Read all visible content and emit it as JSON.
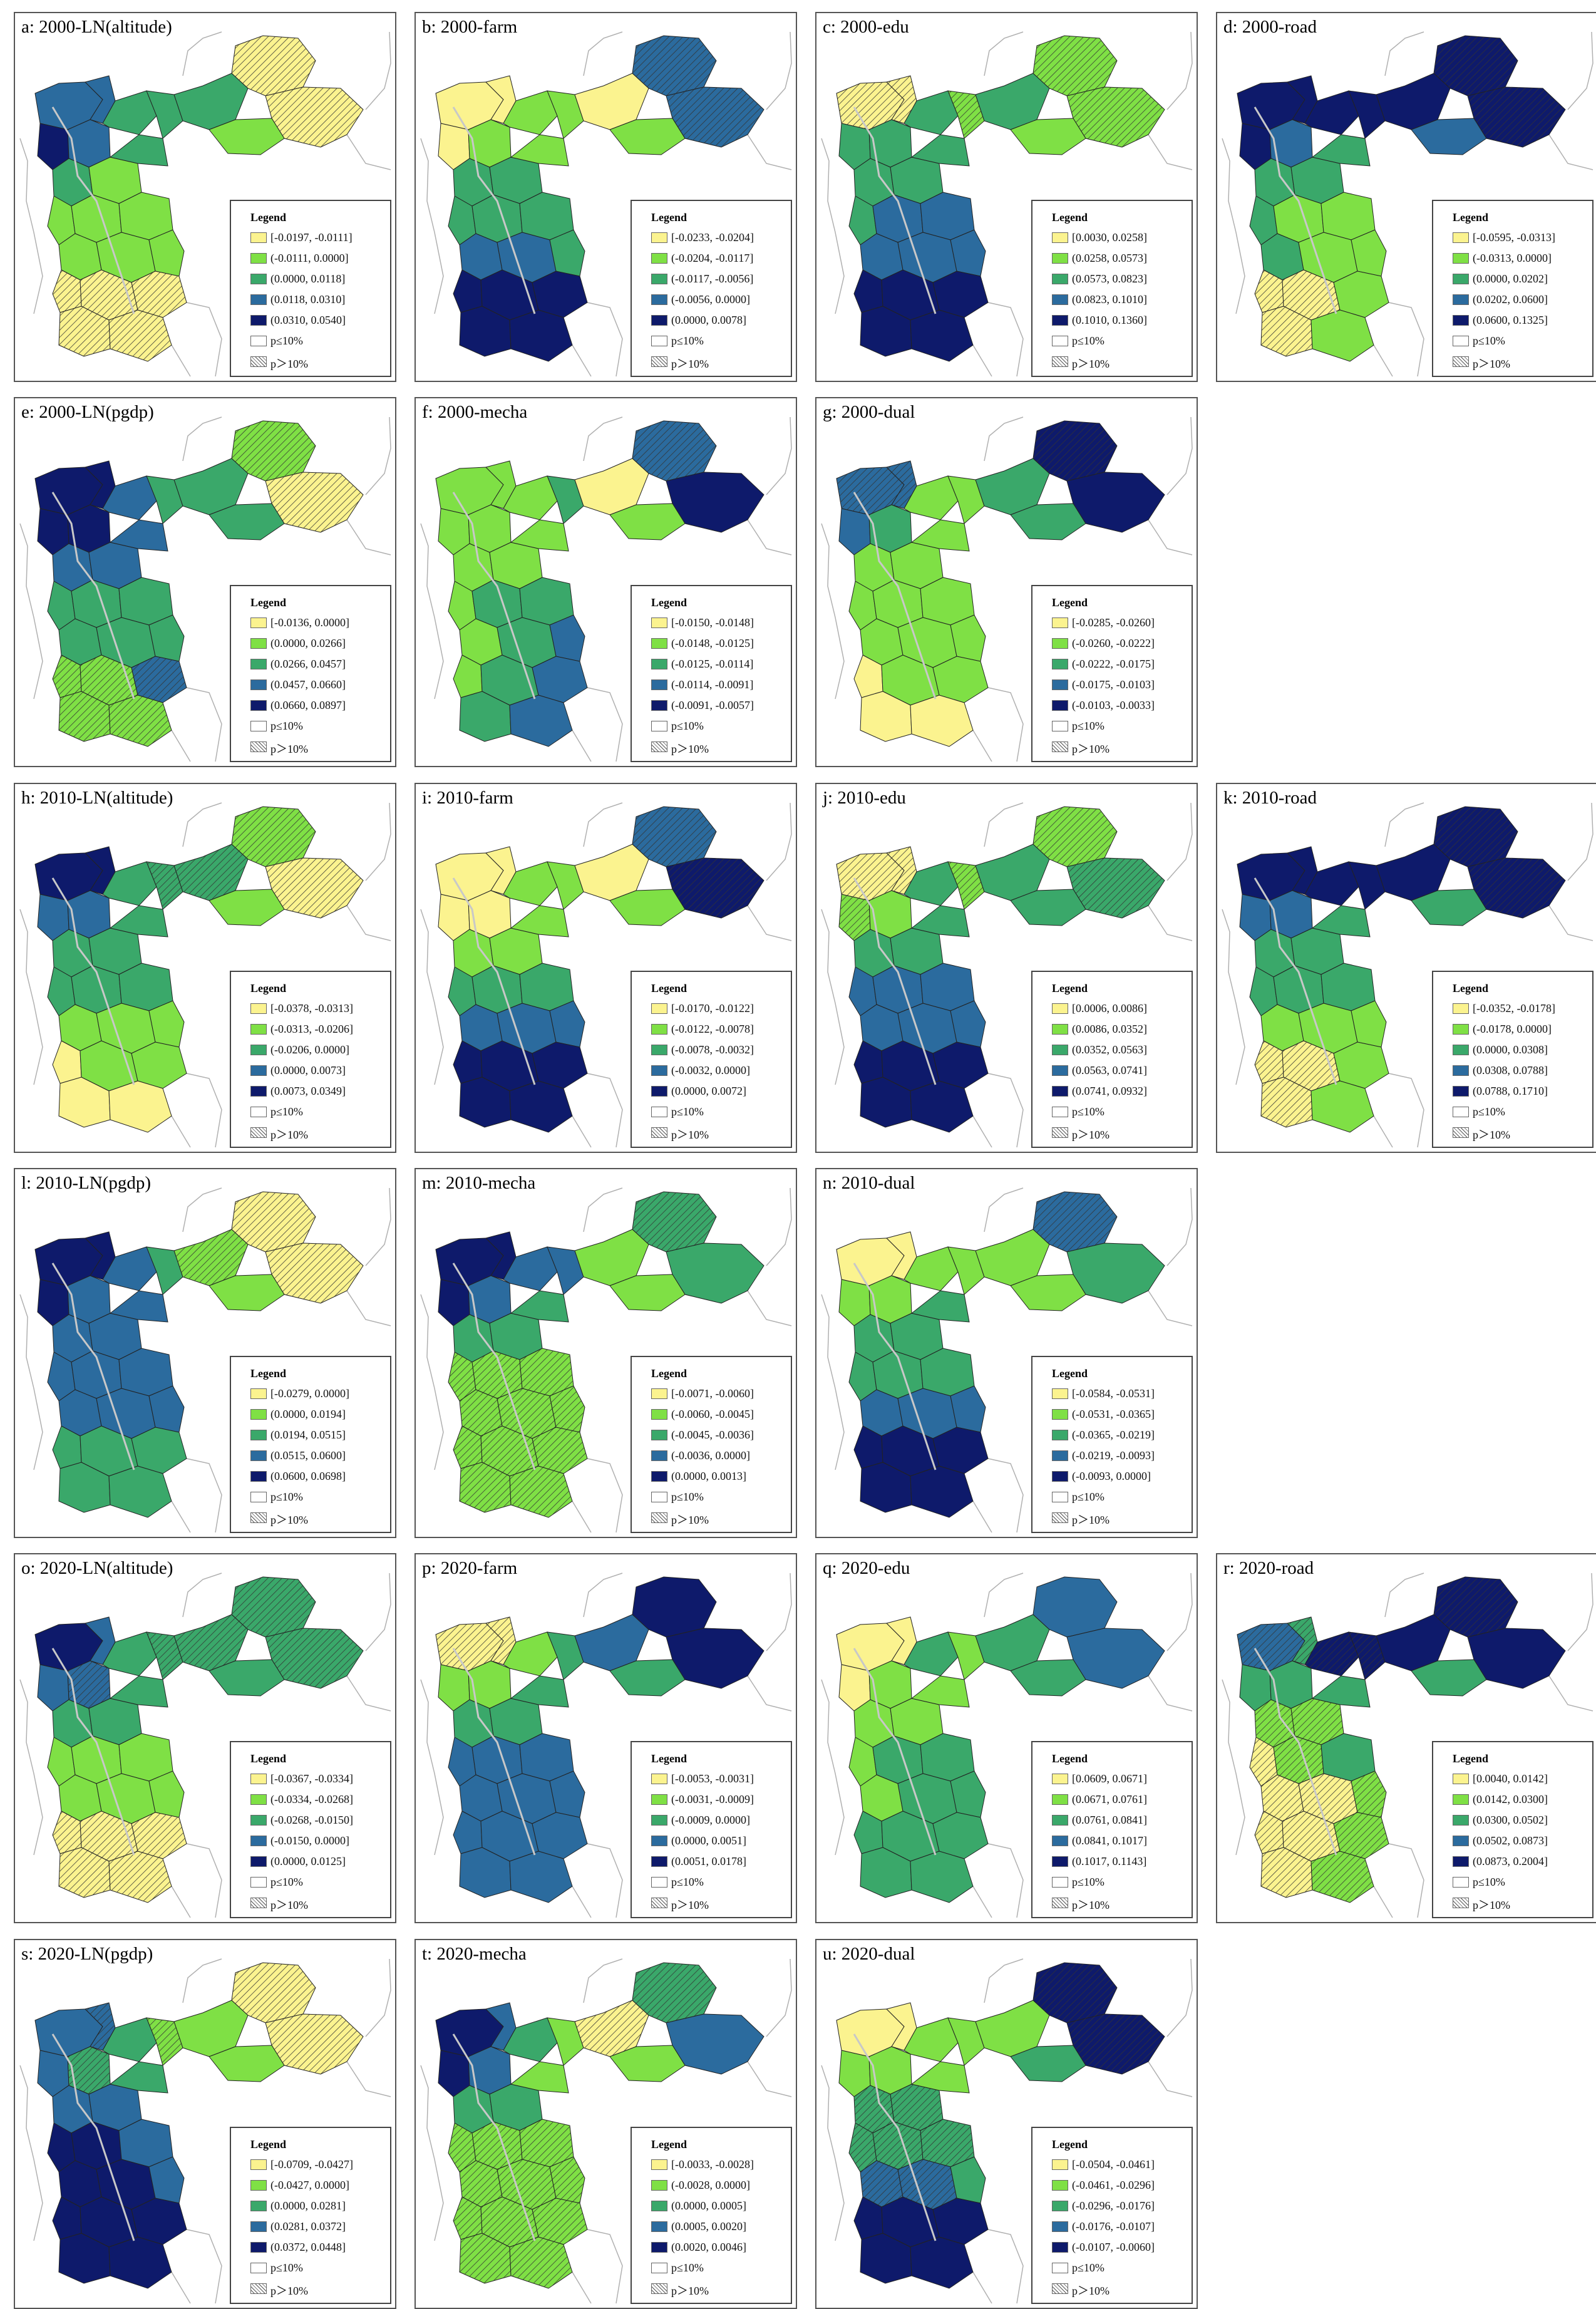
{
  "palette": [
    "#fbf38f",
    "#7fe045",
    "#3aa86a",
    "#2b6b9e",
    "#0e1a6b"
  ],
  "hatch_legend_label": "p＞10%",
  "nohatch_legend_label": "p≤10%",
  "legend_title": "Legend",
  "panels": [
    {
      "title": "a: 2000-LN(altitude)",
      "legend": [
        "[-0.0197, -0.0111]",
        "(-0.0111, 0.0000]",
        "(0.0000, 0.0118]",
        "(0.0118, 0.0310]",
        "(0.0310, 0.0540]"
      ],
      "layer": 0
    },
    {
      "title": "b: 2000-farm",
      "legend": [
        "[-0.0233, -0.0204]",
        "(-0.0204, -0.0117]",
        "(-0.0117, -0.0056]",
        "(-0.0056, 0.0000]",
        "(0.0000, 0.0078]"
      ],
      "layer": 1
    },
    {
      "title": "c: 2000-edu",
      "legend": [
        "[0.0030, 0.0258]",
        "(0.0258, 0.0573]",
        "(0.0573, 0.0823]",
        "(0.0823, 0.1010]",
        "(0.1010, 0.1360]"
      ],
      "layer": 2
    },
    {
      "title": "d: 2000-road",
      "legend": [
        "[-0.0595, -0.0313]",
        "(-0.0313, 0.0000]",
        "(0.0000, 0.0202]",
        "(0.0202, 0.0600]",
        "(0.0600, 0.1325]"
      ],
      "layer": 3
    },
    {
      "title": "e: 2000-LN(pgdp)",
      "legend": [
        "[-0.0136, 0.0000]",
        "(0.0000, 0.0266]",
        "(0.0266, 0.0457]",
        "(0.0457, 0.0660]",
        "(0.0660, 0.0897]"
      ],
      "layer": 4
    },
    {
      "title": "f: 2000-mecha",
      "legend": [
        "[-0.0150, -0.0148]",
        "(-0.0148, -0.0125]",
        "(-0.0125, -0.0114]",
        "(-0.0114, -0.0091]",
        "(-0.0091, -0.0057]"
      ],
      "layer": 5
    },
    {
      "title": "g: 2000-dual",
      "legend": [
        "[-0.0285, -0.0260]",
        "(-0.0260, -0.0222]",
        "(-0.0222, -0.0175]",
        "(-0.0175, -0.0103]",
        "(-0.0103, -0.0033]"
      ],
      "layer": 6
    },
    {
      "title": "h: 2010-LN(altitude)",
      "legend": [
        "[-0.0378, -0.0313]",
        "(-0.0313, -0.0206]",
        "(-0.0206, 0.0000]",
        "(0.0000, 0.0073]",
        "(0.0073, 0.0349]"
      ],
      "layer": 0
    },
    {
      "title": "i: 2010-farm",
      "legend": [
        "[-0.0170, -0.0122]",
        "(-0.0122, -0.0078]",
        "(-0.0078, -0.0032]",
        "(-0.0032, 0.0000]",
        "(0.0000, 0.0072]"
      ],
      "layer": 1
    },
    {
      "title": "j: 2010-edu",
      "legend": [
        "[0.0006, 0.0086]",
        "(0.0086, 0.0352]",
        "(0.0352, 0.0563]",
        "(0.0563, 0.0741]",
        "(0.0741, 0.0932]"
      ],
      "layer": 2
    },
    {
      "title": "k: 2010-road",
      "legend": [
        "[-0.0352, -0.0178]",
        "(-0.0178, 0.0000]",
        "(0.0000, 0.0308]",
        "(0.0308, 0.0788]",
        "(0.0788, 0.1710]"
      ],
      "layer": 3
    },
    {
      "title": "l: 2010-LN(pgdp)",
      "legend": [
        "[-0.0279, 0.0000]",
        "(0.0000, 0.0194]",
        "(0.0194, 0.0515]",
        "(0.0515, 0.0600]",
        "(0.0600, 0.0698]"
      ],
      "layer": 4
    },
    {
      "title": "m: 2010-mecha",
      "legend": [
        "[-0.0071, -0.0060]",
        "(-0.0060, -0.0045]",
        "(-0.0045, -0.0036]",
        "(-0.0036, 0.0000]",
        "(0.0000, 0.0013]"
      ],
      "layer": 5
    },
    {
      "title": "n: 2010-dual",
      "legend": [
        "[-0.0584, -0.0531]",
        "(-0.0531, -0.0365]",
        "(-0.0365, -0.0219]",
        "(-0.0219, -0.0093]",
        "(-0.0093, 0.0000]"
      ],
      "layer": 6
    },
    {
      "title": "o: 2020-LN(altitude)",
      "legend": [
        "[-0.0367, -0.0334]",
        "(-0.0334, -0.0268]",
        "(-0.0268, -0.0150]",
        "(-0.0150, 0.0000]",
        "(0.0000, 0.0125]"
      ],
      "layer": 0
    },
    {
      "title": "p: 2020-farm",
      "legend": [
        "[-0.0053, -0.0031]",
        "(-0.0031, -0.0009]",
        "(-0.0009, 0.0000]",
        "(0.0000, 0.0051]",
        "(0.0051, 0.0178]"
      ],
      "layer": 1
    },
    {
      "title": "q: 2020-edu",
      "legend": [
        "[0.0609, 0.0671]",
        "(0.0671, 0.0761]",
        "(0.0761, 0.0841]",
        "(0.0841, 0.1017]",
        "(0.1017, 0.1143]"
      ],
      "layer": 2
    },
    {
      "title": "r: 2020-road",
      "legend": [
        "[0.0040, 0.0142]",
        "(0.0142, 0.0300]",
        "(0.0300, 0.0502]",
        "(0.0502, 0.0873]",
        "(0.0873, 0.2004]"
      ],
      "layer": 3
    },
    {
      "title": "s: 2020-LN(pgdp)",
      "legend": [
        "[-0.0709, -0.0427]",
        "(-0.0427, 0.0000]",
        "(0.0000, 0.0281]",
        "(0.0281, 0.0372]",
        "(0.0372, 0.0448]"
      ],
      "layer": 4
    },
    {
      "title": "t: 2020-mecha",
      "legend": [
        "[-0.0033, -0.0028]",
        "(-0.0028, 0.0000]",
        "(0.0000, 0.0005]",
        "(0.0005, 0.0020]",
        "(0.0020, 0.0046]"
      ],
      "layer": 5
    },
    {
      "title": "u: 2020-dual",
      "legend": [
        "[-0.0504, -0.0461]",
        "(-0.0461, -0.0296]",
        "(-0.0296, -0.0176]",
        "(-0.0176, -0.0107]",
        "(-0.0107, -0.0060]"
      ],
      "layer": 6
    }
  ]
}
